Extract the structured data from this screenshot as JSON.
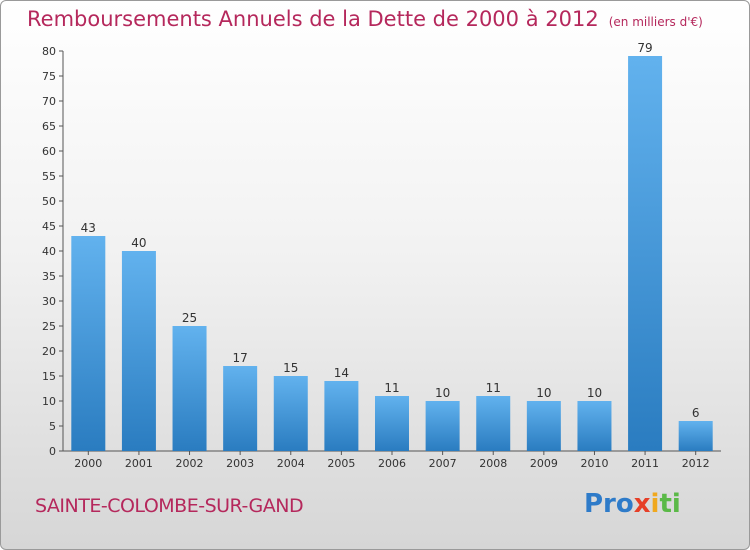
{
  "header": {
    "title": "Remboursements Annuels de la Dette de 2000 à 2012",
    "unit": "(en milliers d'€)"
  },
  "footer": {
    "town": "SAINTE-COLOMBE-SUR-GAND",
    "logo": [
      "Pro",
      "x",
      "i",
      "ti"
    ]
  },
  "colors": {
    "accent": "#b5285c",
    "bar_light": "#62b2ee",
    "bar_dark": "#2a7cc0"
  },
  "chart_data": {
    "type": "bar",
    "title": "Remboursements Annuels de la Dette de 2000 à 2012",
    "categories": [
      "2000",
      "2001",
      "2002",
      "2003",
      "2004",
      "2005",
      "2006",
      "2007",
      "2008",
      "2009",
      "2010",
      "2011",
      "2012"
    ],
    "values": [
      43,
      40,
      25,
      17,
      15,
      14,
      11,
      10,
      11,
      10,
      10,
      79,
      6
    ],
    "ylim": [
      0,
      80
    ],
    "yticks": [
      0,
      5,
      10,
      15,
      20,
      25,
      30,
      35,
      40,
      45,
      50,
      55,
      60,
      65,
      70,
      75,
      80
    ],
    "grid": false,
    "legend": "none"
  }
}
